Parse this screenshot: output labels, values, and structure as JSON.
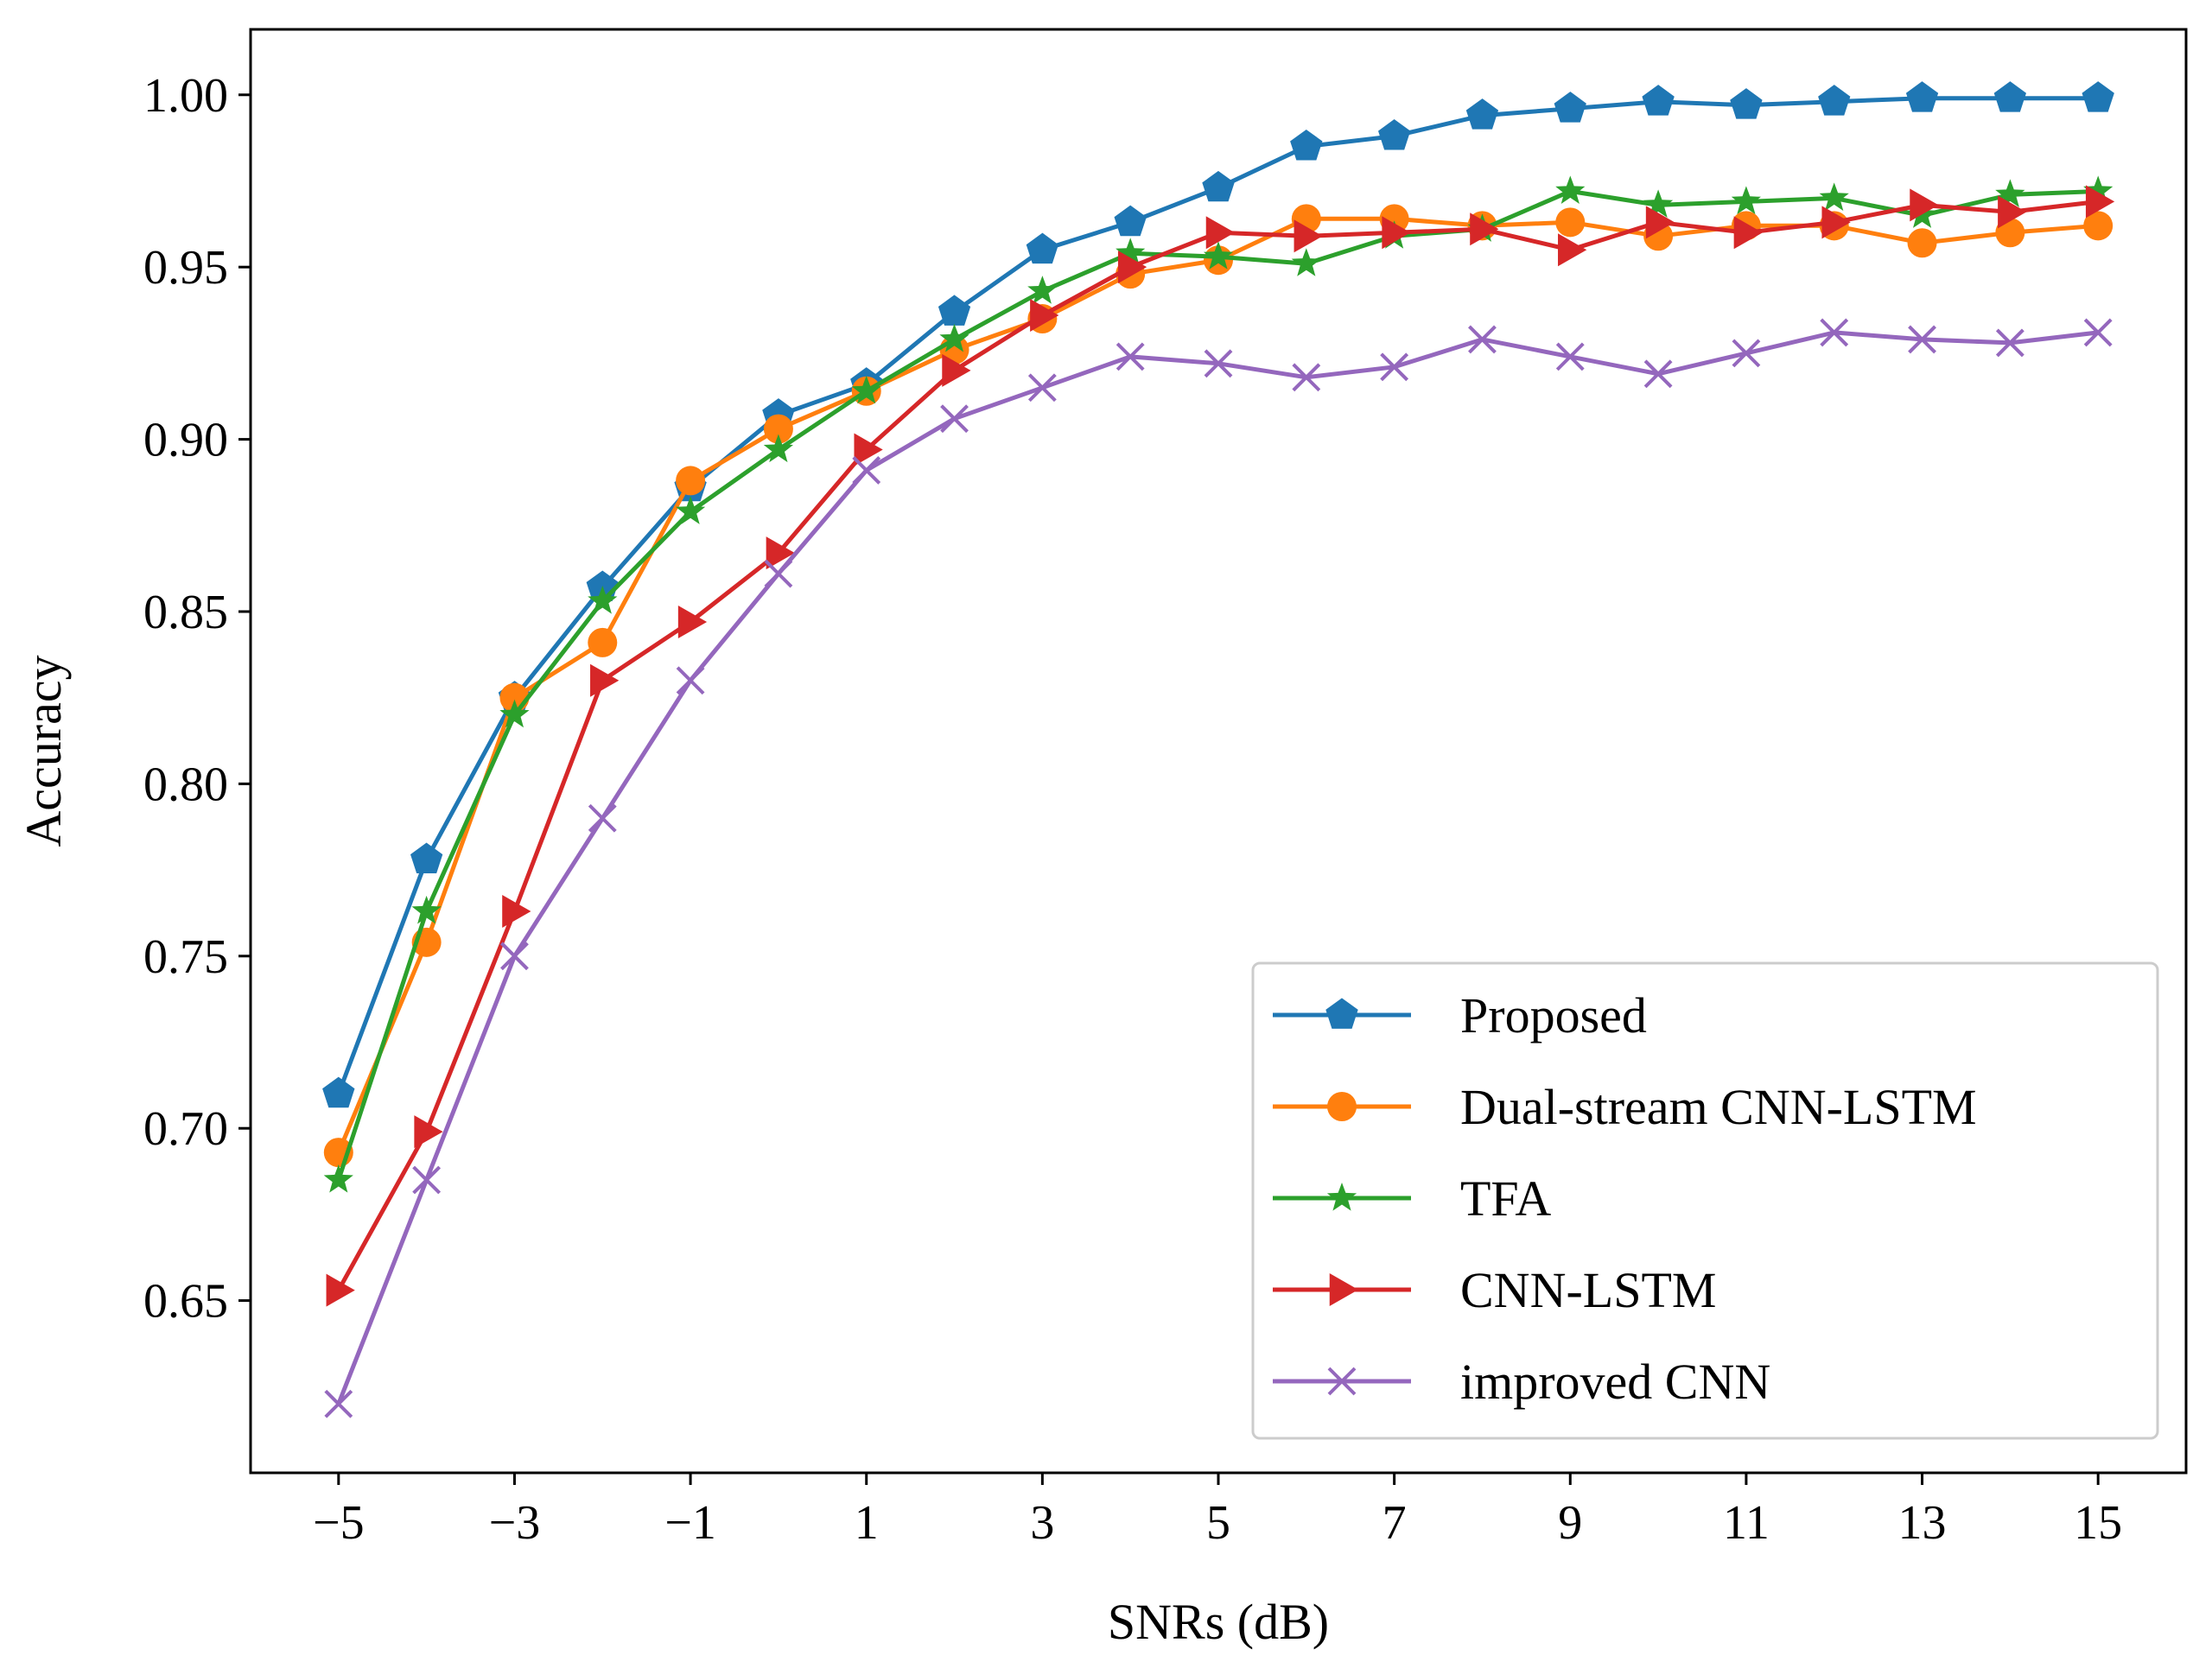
{
  "chart_data": {
    "type": "line",
    "title": "",
    "xlabel": "SNRs (dB)",
    "ylabel": "Accuracy",
    "x": [
      -5,
      -4,
      -3,
      -2,
      -1,
      0,
      1,
      2,
      3,
      4,
      5,
      6,
      7,
      8,
      9,
      10,
      11,
      12,
      13,
      14,
      15
    ],
    "xlim": [
      -6,
      16
    ],
    "ylim": [
      0.6,
      1.019
    ],
    "xticks": [
      -5,
      -3,
      -1,
      1,
      3,
      5,
      7,
      9,
      11,
      13,
      15
    ],
    "xtick_labels": [
      "−5",
      "−3",
      "−1",
      "1",
      "3",
      "5",
      "7",
      "9",
      "11",
      "13",
      "15"
    ],
    "yticks": [
      0.65,
      0.7,
      0.75,
      0.8,
      0.85,
      0.9,
      0.95,
      1.0
    ],
    "ytick_labels": [
      "0.65",
      "0.70",
      "0.75",
      "0.80",
      "0.85",
      "0.90",
      "0.95",
      "1.00"
    ],
    "grid": false,
    "legend_position": "bottom-right",
    "series": [
      {
        "name": "Proposed",
        "color": "#1f77b4",
        "marker": "pentagon",
        "values": [
          0.71,
          0.778,
          0.825,
          0.857,
          0.886,
          0.907,
          0.916,
          0.937,
          0.955,
          0.963,
          0.973,
          0.985,
          0.988,
          0.994,
          0.996,
          0.998,
          0.997,
          0.998,
          0.999,
          0.999,
          0.999
        ]
      },
      {
        "name": "Dual-stream CNN-LSTM",
        "color": "#ff7f0e",
        "marker": "circle",
        "values": [
          0.693,
          0.754,
          0.825,
          0.841,
          0.888,
          0.903,
          0.914,
          0.926,
          0.935,
          0.948,
          0.952,
          0.964,
          0.964,
          0.962,
          0.963,
          0.959,
          0.962,
          0.962,
          0.957,
          0.96,
          0.962
        ]
      },
      {
        "name": "TFA",
        "color": "#2ca02c",
        "marker": "star",
        "values": [
          0.685,
          0.763,
          0.82,
          0.853,
          0.879,
          0.897,
          0.914,
          0.929,
          0.943,
          0.954,
          0.953,
          0.951,
          0.959,
          0.961,
          0.972,
          0.968,
          0.969,
          0.97,
          0.965,
          0.971,
          0.972
        ]
      },
      {
        "name": "CNN-LSTM",
        "color": "#d62728",
        "marker": "triangle-right",
        "values": [
          0.653,
          0.699,
          0.763,
          0.83,
          0.847,
          0.867,
          0.897,
          0.92,
          0.936,
          0.95,
          0.96,
          0.959,
          0.96,
          0.961,
          0.955,
          0.963,
          0.96,
          0.963,
          0.968,
          0.966,
          0.969
        ]
      },
      {
        "name": "improved CNN",
        "color": "#9467bd",
        "marker": "x",
        "values": [
          0.62,
          0.685,
          0.75,
          0.79,
          0.83,
          0.861,
          0.891,
          0.906,
          0.915,
          0.924,
          0.922,
          0.918,
          0.921,
          0.929,
          0.924,
          0.919,
          0.925,
          0.931,
          0.929,
          0.928,
          0.931
        ]
      }
    ]
  }
}
